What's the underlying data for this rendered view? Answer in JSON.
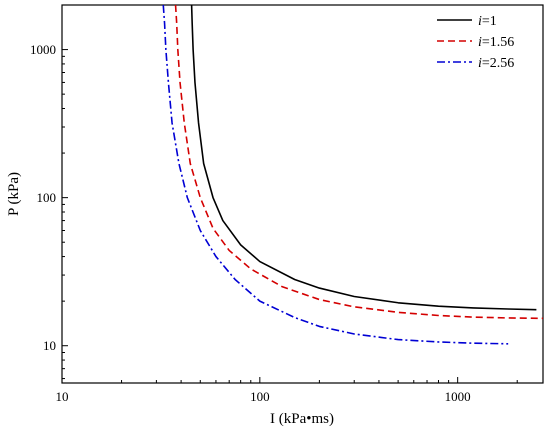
{
  "chart_data": {
    "type": "line",
    "xlabel": "I (kPa•ms)",
    "ylabel": "P (kPa)",
    "x_scale": "log",
    "y_scale": "log",
    "xlim": [
      10,
      2700
    ],
    "ylim": [
      5.6,
      2000
    ],
    "x_ticks": [
      10,
      100,
      1000
    ],
    "x_tick_labels": [
      "10",
      "100",
      "1000"
    ],
    "y_ticks": [
      10,
      100,
      1000
    ],
    "y_tick_labels": [
      "10",
      "100",
      "1000"
    ],
    "grid": false,
    "legend_position": "top-right",
    "series": [
      {
        "name": "i=1",
        "legend_italic": "i",
        "legend_rest": "=1",
        "color": "#000000",
        "dash": "solid",
        "points": [
          [
            45.2,
            2000
          ],
          [
            45.5,
            1500
          ],
          [
            46.0,
            1000
          ],
          [
            47.0,
            600
          ],
          [
            49.0,
            320
          ],
          [
            52.0,
            170
          ],
          [
            58.0,
            100
          ],
          [
            65.0,
            70
          ],
          [
            80.0,
            48
          ],
          [
            100.0,
            37
          ],
          [
            150.0,
            28
          ],
          [
            200.0,
            24.5
          ],
          [
            300.0,
            21.5
          ],
          [
            500.0,
            19.5
          ],
          [
            800.0,
            18.5
          ],
          [
            1200.0,
            18.0
          ],
          [
            1800.0,
            17.7
          ],
          [
            2500.0,
            17.5
          ]
        ]
      },
      {
        "name": "i=1.56",
        "legend_italic": "i",
        "legend_rest": "=1.56",
        "color": "#d40000",
        "dash": "dashed",
        "points": [
          [
            37.5,
            2000
          ],
          [
            38.0,
            1500
          ],
          [
            38.5,
            1000
          ],
          [
            39.5,
            600
          ],
          [
            41.5,
            320
          ],
          [
            44.5,
            170
          ],
          [
            50.0,
            100
          ],
          [
            58.0,
            62
          ],
          [
            70.0,
            44
          ],
          [
            90.0,
            33
          ],
          [
            130.0,
            25
          ],
          [
            200.0,
            20.5
          ],
          [
            300.0,
            18.3
          ],
          [
            500.0,
            16.8
          ],
          [
            800.0,
            16.0
          ],
          [
            1200.0,
            15.6
          ],
          [
            1800.0,
            15.4
          ],
          [
            2700.0,
            15.3
          ]
        ]
      },
      {
        "name": "i=2.56",
        "legend_italic": "i",
        "legend_rest": "=2.56",
        "color": "#0000d4",
        "dash": "dashdot",
        "points": [
          [
            32.5,
            2000
          ],
          [
            33.0,
            1500
          ],
          [
            33.5,
            1000
          ],
          [
            34.5,
            600
          ],
          [
            36.0,
            320
          ],
          [
            39.0,
            170
          ],
          [
            43.0,
            100
          ],
          [
            50.0,
            60
          ],
          [
            60.0,
            40
          ],
          [
            75.0,
            28
          ],
          [
            100.0,
            20
          ],
          [
            150.0,
            15.5
          ],
          [
            200.0,
            13.5
          ],
          [
            300.0,
            12.0
          ],
          [
            500.0,
            11.0
          ],
          [
            800.0,
            10.6
          ],
          [
            1200.0,
            10.4
          ],
          [
            1800.0,
            10.3
          ]
        ]
      }
    ]
  }
}
